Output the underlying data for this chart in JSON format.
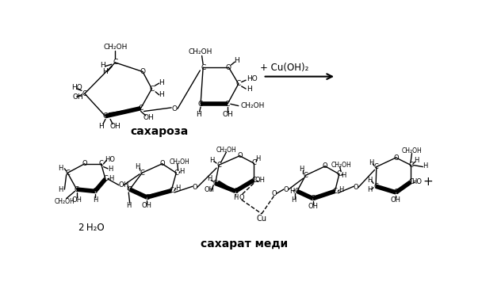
{
  "background_color": "#ffffff",
  "label_saxaroza": "сахароза",
  "label_saxarat": "сахарат меди",
  "label_reagent": "+ Cu(OH)₂",
  "label_water": "2 H₂O",
  "label_cu": "Cu",
  "figsize": [
    6.08,
    3.56
  ],
  "dpi": 100
}
